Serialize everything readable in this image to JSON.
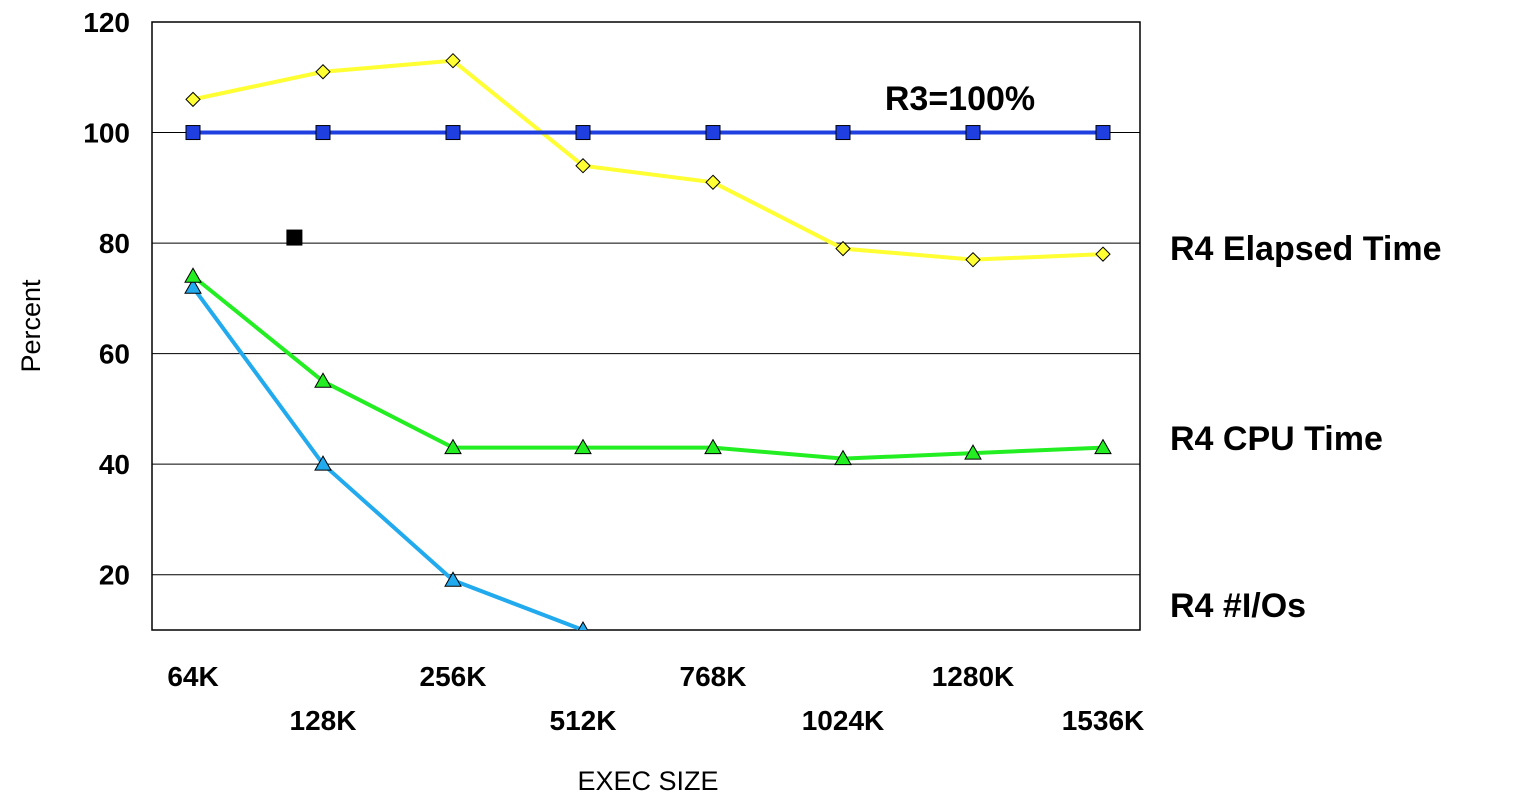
{
  "chart_data": {
    "type": "line",
    "title": "",
    "xlabel": "EXEC SIZE",
    "ylabel": "Percent",
    "categories": [
      "64K",
      "128K",
      "256K",
      "512K",
      "768K",
      "1024K",
      "1280K",
      "1536K"
    ],
    "yticks": [
      "20",
      "40",
      "60",
      "80",
      "100",
      "120"
    ],
    "ylim": [
      10,
      120
    ],
    "grid": true,
    "series": [
      {
        "name": "R3=100%",
        "color": "#1f3fe0",
        "marker": "square",
        "values": [
          100,
          100,
          100,
          100,
          100,
          100,
          100,
          100
        ]
      },
      {
        "name": "R4 Elapsed Time",
        "color": "#ffff33",
        "marker": "diamond",
        "values": [
          106,
          111,
          113,
          94,
          91,
          79,
          77,
          78
        ]
      },
      {
        "name": "R4 CPU Time",
        "color": "#22ee22",
        "marker": "triangle",
        "values": [
          74,
          55,
          43,
          43,
          43,
          41,
          42,
          43
        ]
      },
      {
        "name": "R4 #I/Os",
        "color": "#22aaee",
        "marker": "triangle",
        "values": [
          72,
          40,
          19,
          10,
          null,
          null,
          null,
          null
        ]
      }
    ],
    "extra_points": [
      {
        "x_between": [
          "64K",
          "128K"
        ],
        "y": 81,
        "color": "#000000",
        "marker": "square"
      }
    ]
  }
}
